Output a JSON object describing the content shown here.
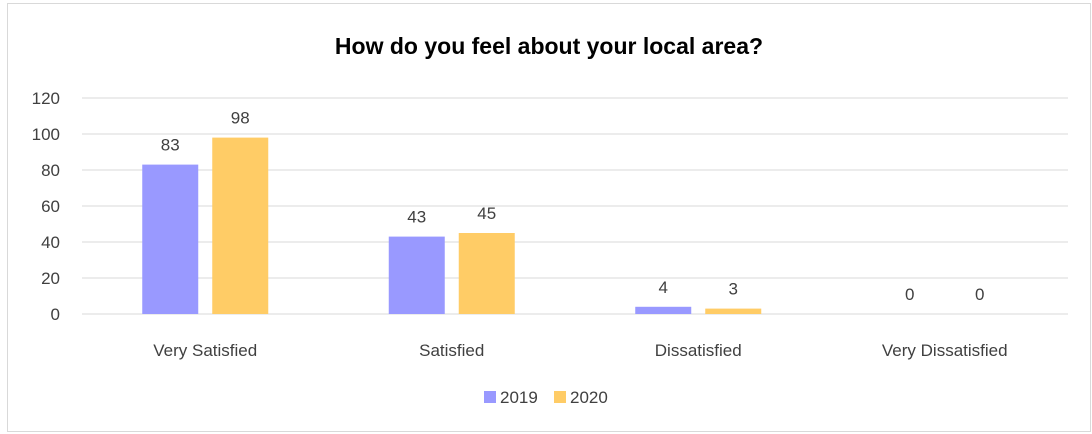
{
  "chart_data": {
    "type": "bar",
    "title": "How do you feel about your local area?",
    "categories": [
      "Very Satisfied",
      "Satisfied",
      "Dissatisfied",
      "Very Dissatisfied"
    ],
    "series": [
      {
        "name": "2019",
        "values": [
          83,
          43,
          4,
          0
        ],
        "color": "#9999ff"
      },
      {
        "name": "2020",
        "values": [
          98,
          45,
          3,
          0
        ],
        "color": "#ffcc66"
      }
    ],
    "ylim": [
      0,
      120
    ],
    "yticks": [
      0,
      20,
      40,
      60,
      80,
      100,
      120
    ],
    "grid": true,
    "data_labels": true,
    "legend": "bottom"
  }
}
